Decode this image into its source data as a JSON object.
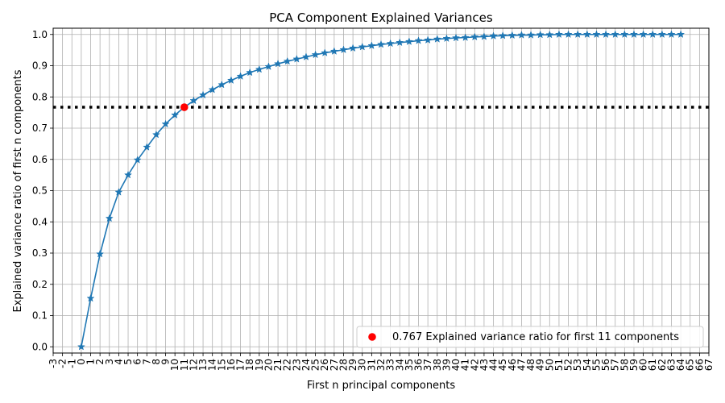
{
  "chart_data": {
    "type": "line",
    "title": "PCA Component Explained Variances",
    "xlabel": "First n principal components",
    "ylabel": "Explained variance ratio of first n components",
    "xlim": [
      -3,
      67
    ],
    "ylim": [
      -0.02,
      1.02
    ],
    "x_ticks": [
      -3,
      -2,
      -1,
      0,
      1,
      2,
      3,
      4,
      5,
      6,
      7,
      8,
      9,
      10,
      11,
      12,
      13,
      14,
      15,
      16,
      17,
      18,
      19,
      20,
      21,
      22,
      23,
      24,
      25,
      26,
      27,
      28,
      29,
      30,
      31,
      32,
      33,
      34,
      35,
      36,
      37,
      38,
      39,
      40,
      41,
      42,
      43,
      44,
      45,
      46,
      47,
      48,
      49,
      50,
      51,
      52,
      53,
      54,
      55,
      56,
      57,
      58,
      59,
      60,
      61,
      62,
      63,
      64,
      65,
      66,
      67
    ],
    "y_ticks": [
      "0.0",
      "0.1",
      "0.2",
      "0.3",
      "0.4",
      "0.5",
      "0.6",
      "0.7",
      "0.8",
      "0.9",
      "1.0"
    ],
    "grid": true,
    "series": [
      {
        "color": "#1f77b4",
        "marker": "star",
        "x": [
          0,
          1,
          2,
          3,
          4,
          5,
          6,
          7,
          8,
          9,
          10,
          11,
          12,
          13,
          14,
          15,
          16,
          17,
          18,
          19,
          20,
          21,
          22,
          23,
          24,
          25,
          26,
          27,
          28,
          29,
          30,
          31,
          32,
          33,
          34,
          35,
          36,
          37,
          38,
          39,
          40,
          41,
          42,
          43,
          44,
          45,
          46,
          47,
          48,
          49,
          50,
          51,
          52,
          53,
          54,
          55,
          56,
          57,
          58,
          59,
          60,
          61,
          62,
          63,
          64
        ],
        "y": [
          0.0,
          0.155,
          0.297,
          0.411,
          0.495,
          0.55,
          0.598,
          0.639,
          0.679,
          0.713,
          0.742,
          0.767,
          0.788,
          0.806,
          0.823,
          0.839,
          0.853,
          0.866,
          0.878,
          0.888,
          0.897,
          0.906,
          0.914,
          0.921,
          0.928,
          0.935,
          0.941,
          0.946,
          0.951,
          0.956,
          0.96,
          0.964,
          0.968,
          0.971,
          0.974,
          0.977,
          0.98,
          0.982,
          0.985,
          0.987,
          0.989,
          0.99,
          0.992,
          0.993,
          0.995,
          0.996,
          0.997,
          0.998,
          0.998,
          0.999,
          0.999,
          1.0,
          1.0,
          1.0,
          1.0,
          1.0,
          1.0,
          1.0,
          1.0,
          1.0,
          1.0,
          1.0,
          1.0,
          1.0,
          1.0
        ]
      }
    ],
    "threshold_line": {
      "y": 0.767,
      "style": "dotted",
      "color": "#000000"
    },
    "highlight_point": {
      "x": 11,
      "y": 0.767,
      "color": "#ff0000"
    },
    "legend": {
      "position": "lower right",
      "entries": [
        {
          "label": "0.767 Explained variance ratio for first 11 components",
          "color": "#ff0000",
          "marker": "circle"
        }
      ]
    }
  }
}
